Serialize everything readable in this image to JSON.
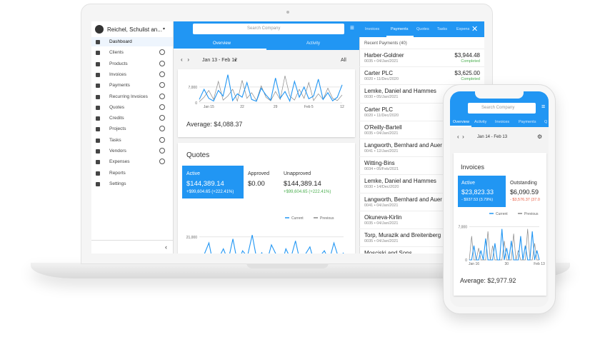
{
  "sidebar": {
    "company": "Reichel, Schulist an...",
    "items": [
      "Dashboard",
      "Clients",
      "Products",
      "Invoices",
      "Payments",
      "Recurring Invoices",
      "Quotes",
      "Credits",
      "Projects",
      "Tasks",
      "Vendors",
      "Expenses",
      "Reports",
      "Settings"
    ]
  },
  "overview": {
    "search": "Search Company",
    "tabs": [
      "Overview",
      "Activity"
    ],
    "range": "Jan 13 - Feb 12",
    "filter": "All",
    "average": "Average: $4,088.37",
    "chart": {
      "type": "line",
      "categories": [
        null,
        null,
        "Jan 15",
        null,
        null,
        null,
        null,
        null,
        null,
        "22",
        null,
        null,
        null,
        null,
        null,
        null,
        "29",
        null,
        null,
        null,
        null,
        null,
        null,
        "Feb 5",
        null,
        null,
        null,
        null,
        null,
        null,
        "12"
      ],
      "ylim": [
        0,
        13000
      ],
      "yticks": [
        0,
        {
          "value": 7000,
          "label": "7,000"
        }
      ],
      "series": [
        {
          "name": "Current",
          "color": "#2196f3",
          "values": [
            1500,
            6000,
            2000,
            800,
            5500,
            3000,
            12500,
            1000,
            4000,
            2500,
            9000,
            1500,
            700,
            6500,
            3500,
            1200,
            11000,
            2000,
            5000,
            800,
            9500,
            2500,
            7000,
            1800,
            3000,
            10500,
            1500,
            4500,
            900,
            2500,
            8000
          ]
        },
        {
          "name": "Previous",
          "color": "#888888",
          "values": [
            500,
            2500,
            5500,
            1500,
            9500,
            1200,
            3000,
            6000,
            800,
            10000,
            2000,
            4500,
            1000,
            7500,
            2500,
            900,
            5000,
            1500,
            12000,
            3000,
            1200,
            6000,
            2000,
            9000,
            1000,
            4000,
            1500,
            6500,
            2000,
            1000,
            3500
          ]
        }
      ]
    }
  },
  "quotes": {
    "title": "Quotes",
    "stats": [
      {
        "label": "Active",
        "value": "$144,389.14",
        "change": "+$99,604.65 (+222.41%)"
      },
      {
        "label": "Approved",
        "value": "$0.00"
      },
      {
        "label": "Unapproved",
        "value": "$144,389.14",
        "change": "+$99,604.65 (+222.41%)"
      }
    ],
    "chart": {
      "type": "line",
      "ylim": [
        0,
        26000
      ],
      "yticks": [
        0,
        {
          "value": 21000,
          "label": "21,000"
        }
      ],
      "series": [
        {
          "name": "Current",
          "color": "#2196f3",
          "values": [
            8000,
            12000,
            18000,
            6000,
            10000,
            15000,
            9000,
            20000,
            7000,
            14000,
            11000,
            22000,
            9000,
            13000,
            8000,
            17000,
            12000,
            6000,
            15000,
            10000,
            19000,
            8000,
            12000,
            16000,
            7000,
            11000,
            14000,
            9000,
            18000,
            10000,
            13000
          ]
        },
        {
          "name": "Previous",
          "color": "#888888",
          "values": [
            5000,
            7000,
            9000,
            6000,
            11000,
            5000,
            8000,
            10000,
            6000,
            9000,
            7000,
            12000,
            5000,
            8000,
            6000,
            9000,
            7000,
            10000,
            5000,
            8000,
            6000,
            11000,
            7000,
            9000,
            5000,
            8000,
            10000,
            6000,
            9000,
            7000,
            8000
          ]
        }
      ]
    }
  },
  "payments": {
    "tabs": [
      "Invoices",
      "Payments",
      "Quotes",
      "Tasks",
      "Expens"
    ],
    "heading": "Recent Payments (40)",
    "items": [
      {
        "name": "Harber-Goldner",
        "meta": "0035 • 04/Jan/2021",
        "amount": "$3,944.48",
        "status": "Completed"
      },
      {
        "name": "Carter PLC",
        "meta": "0020 • 11/Dec/2020",
        "amount": "$3,625.00",
        "status": "Completed"
      },
      {
        "name": "Lemke, Daniel and Hammes",
        "meta": "0030 • 05/Jan/2021"
      },
      {
        "name": "Carter PLC",
        "meta": "0020 • 11/Dec/2020"
      },
      {
        "name": "O'Reilly-Bartell",
        "meta": "0035 • 04/Jan/2021"
      },
      {
        "name": "Langworth, Bernhard and Auer",
        "meta": "0041 • 12/Jan/2021"
      },
      {
        "name": "Witting-Bins",
        "meta": "0034 • 05/Feb/2021"
      },
      {
        "name": "Lemke, Daniel and Hammes",
        "meta": "0030 • 14/Dec/2020"
      },
      {
        "name": "Langworth, Bernhard and Auer",
        "meta": "0041 • 04/Jan/2021"
      },
      {
        "name": "Okuneva-Kirlin",
        "meta": "0035 • 04/Jan/2021"
      },
      {
        "name": "Torp, Murazik and Breitenberg",
        "meta": "0035 • 04/Jan/2021"
      },
      {
        "name": "Mosciski and Sons"
      }
    ]
  },
  "phone": {
    "search": "Search Company",
    "tabs": [
      "Overview",
      "Activity",
      "Invoices",
      "Payments",
      "Q"
    ],
    "range": "Jan 14 - Feb 13",
    "title": "Invoices",
    "stats": [
      {
        "label": "Active",
        "value": "$23,823.33",
        "change": "- $937.53 (3.79%)"
      },
      {
        "label": "Outstanding",
        "value": "$6,090.59",
        "change": "- $3,576.37 (37.0"
      }
    ],
    "average": "Average: $2,977.92",
    "chart": {
      "type": "line",
      "categories": [
        null,
        null,
        "Jan 16",
        null,
        null,
        null,
        null,
        null,
        null,
        null,
        null,
        null,
        null,
        null,
        null,
        null,
        "30",
        null,
        null,
        null,
        null,
        null,
        null,
        null,
        null,
        null,
        null,
        null,
        null,
        null,
        "Feb 13"
      ],
      "ylim": [
        0,
        7500
      ],
      "yticks": [
        0,
        {
          "value": 7000,
          "label": "7,000"
        }
      ],
      "series": [
        {
          "name": "Current",
          "color": "#2196f3",
          "values": [
            0,
            0,
            3000,
            0,
            0,
            2000,
            0,
            4500,
            0,
            0,
            0,
            3500,
            0,
            0,
            6500,
            0,
            2500,
            0,
            4000,
            0,
            0,
            0,
            5000,
            0,
            3000,
            0,
            0,
            6000,
            0,
            2000,
            0
          ]
        },
        {
          "name": "Previous",
          "color": "#888888",
          "values": [
            0,
            5000,
            0,
            0,
            2500,
            0,
            0,
            0,
            6000,
            0,
            3000,
            0,
            0,
            0,
            0,
            4000,
            0,
            0,
            0,
            5500,
            0,
            2000,
            0,
            0,
            0,
            6500,
            0,
            0,
            3500,
            0,
            0
          ]
        }
      ]
    }
  }
}
